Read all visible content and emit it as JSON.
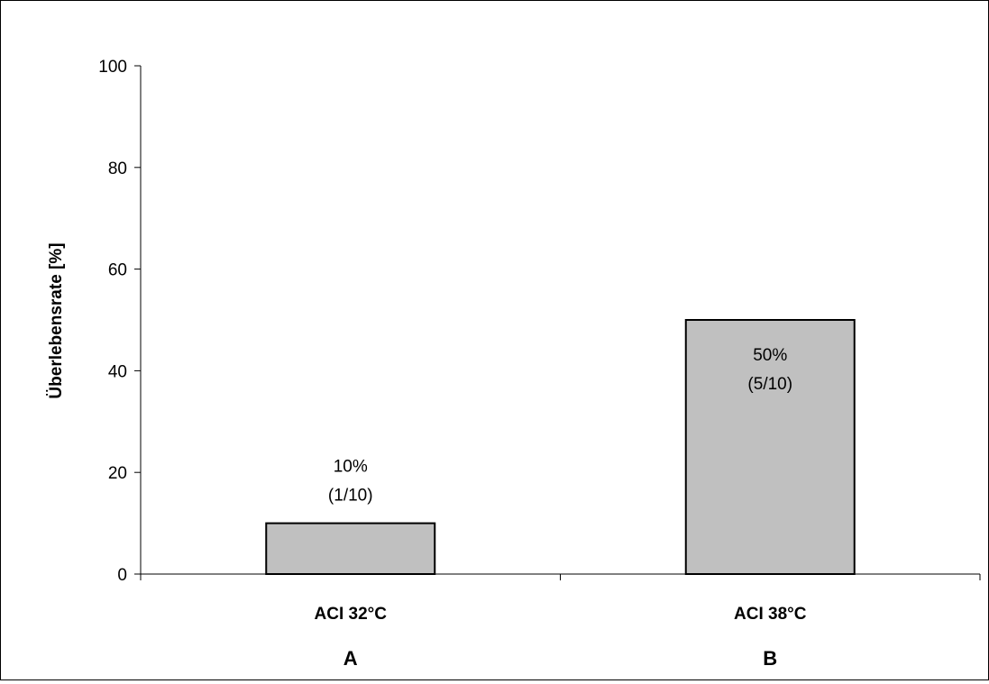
{
  "chart_data": {
    "type": "bar",
    "title": "",
    "xlabel": "",
    "ylabel": "Überlebensrate [%]",
    "ylim": [
      0,
      100
    ],
    "yticks": [
      0,
      20,
      40,
      60,
      80,
      100
    ],
    "grid": false,
    "legend": "none",
    "categories": [
      "ACI 32°C",
      "ACI 38°C"
    ],
    "group_labels": [
      "A",
      "B"
    ],
    "series": [
      {
        "values": [
          10,
          50
        ],
        "color": "#c0c0c0"
      }
    ],
    "data_labels": [
      {
        "percent": "10%",
        "ratio": "(1/10)"
      },
      {
        "percent": "50%",
        "ratio": "(5/10)"
      }
    ]
  }
}
